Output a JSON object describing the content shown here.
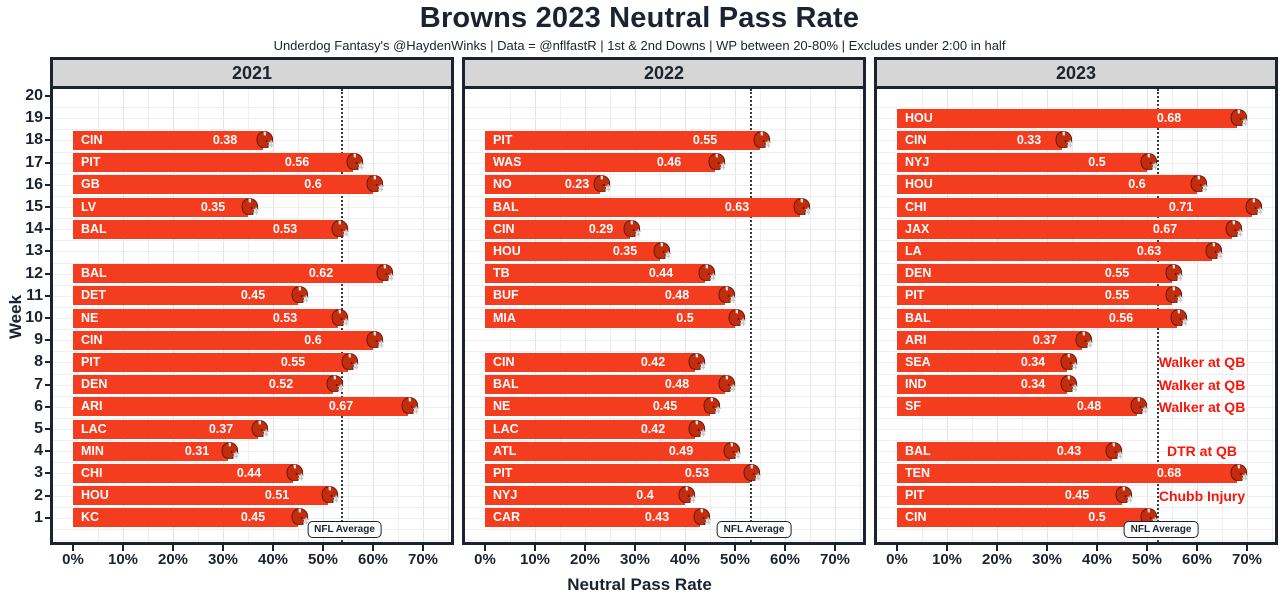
{
  "title": "Browns 2023 Neutral Pass Rate",
  "subtitle": "Underdog Fantasy's @HaydenWinks | Data = @nflfastR | 1st & 2nd Downs | WP between 20-80% | Excludes under 2:00 in half",
  "axes": {
    "x_label": "Neutral Pass Rate",
    "y_label": "Week",
    "x_ticks": [
      "0%",
      "10%",
      "20%",
      "30%",
      "40%",
      "50%",
      "60%",
      "70%"
    ],
    "week_labels": [
      20,
      19,
      18,
      17,
      16,
      15,
      14,
      13,
      12,
      11,
      10,
      9,
      8,
      7,
      6,
      5,
      4,
      3,
      2,
      1
    ]
  },
  "nfl_average_label": "NFL Average",
  "colors": {
    "bar": "#f43c1e",
    "bar_label_text": "#ffffff",
    "annotation": "#f8150a",
    "panel_border": "#1b2330",
    "strip_bg": "#d6d6d6",
    "text_dark": "#1b2330",
    "grid_minor": "#efefef",
    "grid_major": "#e3e3e3",
    "avg_line": "#3b3b3b",
    "helmet_shell": "#c22d0e",
    "helmet_mask": "#c9c9c9"
  },
  "chart_data": {
    "type": "bar",
    "orientation": "horizontal",
    "x_range": [
      0,
      0.76
    ],
    "grid": true,
    "panels": [
      {
        "year": "2021",
        "nfl_average": 0.535,
        "bars": [
          {
            "week": 18,
            "team": "CIN",
            "value": 0.38
          },
          {
            "week": 17,
            "team": "PIT",
            "value": 0.56
          },
          {
            "week": 16,
            "team": "GB",
            "value": 0.6
          },
          {
            "week": 15,
            "team": "LV",
            "value": 0.35
          },
          {
            "week": 14,
            "team": "BAL",
            "value": 0.53
          },
          {
            "week": 12,
            "team": "BAL",
            "value": 0.62
          },
          {
            "week": 11,
            "team": "DET",
            "value": 0.45
          },
          {
            "week": 10,
            "team": "NE",
            "value": 0.53
          },
          {
            "week": 9,
            "team": "CIN",
            "value": 0.6
          },
          {
            "week": 8,
            "team": "PIT",
            "value": 0.55
          },
          {
            "week": 7,
            "team": "DEN",
            "value": 0.52
          },
          {
            "week": 6,
            "team": "ARI",
            "value": 0.67
          },
          {
            "week": 5,
            "team": "LAC",
            "value": 0.37
          },
          {
            "week": 4,
            "team": "MIN",
            "value": 0.31
          },
          {
            "week": 3,
            "team": "CHI",
            "value": 0.44
          },
          {
            "week": 2,
            "team": "HOU",
            "value": 0.51
          },
          {
            "week": 1,
            "team": "KC",
            "value": 0.45
          }
        ],
        "annotations": []
      },
      {
        "year": "2022",
        "nfl_average": 0.53,
        "bars": [
          {
            "week": 18,
            "team": "PIT",
            "value": 0.55
          },
          {
            "week": 17,
            "team": "WAS",
            "value": 0.46
          },
          {
            "week": 16,
            "team": "NO",
            "value": 0.23
          },
          {
            "week": 15,
            "team": "BAL",
            "value": 0.63
          },
          {
            "week": 14,
            "team": "CIN",
            "value": 0.29
          },
          {
            "week": 13,
            "team": "HOU",
            "value": 0.35
          },
          {
            "week": 12,
            "team": "TB",
            "value": 0.44
          },
          {
            "week": 11,
            "team": "BUF",
            "value": 0.48
          },
          {
            "week": 10,
            "team": "MIA",
            "value": 0.5
          },
          {
            "week": 8,
            "team": "CIN",
            "value": 0.42
          },
          {
            "week": 7,
            "team": "BAL",
            "value": 0.48
          },
          {
            "week": 6,
            "team": "NE",
            "value": 0.45
          },
          {
            "week": 5,
            "team": "LAC",
            "value": 0.42
          },
          {
            "week": 4,
            "team": "ATL",
            "value": 0.49
          },
          {
            "week": 3,
            "team": "PIT",
            "value": 0.53
          },
          {
            "week": 2,
            "team": "NYJ",
            "value": 0.4
          },
          {
            "week": 1,
            "team": "CAR",
            "value": 0.43
          }
        ],
        "annotations": []
      },
      {
        "year": "2023",
        "nfl_average": 0.52,
        "bars": [
          {
            "week": 19,
            "team": "HOU",
            "value": 0.68
          },
          {
            "week": 18,
            "team": "CIN",
            "value": 0.33
          },
          {
            "week": 17,
            "team": "NYJ",
            "value": 0.5
          },
          {
            "week": 16,
            "team": "HOU",
            "value": 0.6
          },
          {
            "week": 15,
            "team": "CHI",
            "value": 0.71
          },
          {
            "week": 14,
            "team": "JAX",
            "value": 0.67
          },
          {
            "week": 13,
            "team": "LA",
            "value": 0.63
          },
          {
            "week": 12,
            "team": "DEN",
            "value": 0.55
          },
          {
            "week": 11,
            "team": "PIT",
            "value": 0.55
          },
          {
            "week": 10,
            "team": "BAL",
            "value": 0.56
          },
          {
            "week": 9,
            "team": "ARI",
            "value": 0.37
          },
          {
            "week": 8,
            "team": "SEA",
            "value": 0.34
          },
          {
            "week": 7,
            "team": "IND",
            "value": 0.34
          },
          {
            "week": 6,
            "team": "SF",
            "value": 0.48
          },
          {
            "week": 4,
            "team": "BAL",
            "value": 0.43
          },
          {
            "week": 3,
            "team": "TEN",
            "value": 0.68
          },
          {
            "week": 2,
            "team": "PIT",
            "value": 0.45
          },
          {
            "week": 1,
            "team": "CIN",
            "value": 0.5
          }
        ],
        "annotations": [
          {
            "week": 8,
            "text": "Walker at QB"
          },
          {
            "week": 7,
            "text": "Walker at QB"
          },
          {
            "week": 6,
            "text": "Walker at QB"
          },
          {
            "week": 4,
            "text": "DTR at QB"
          },
          {
            "week": 2,
            "text": "Chubb Injury"
          }
        ]
      }
    ]
  }
}
